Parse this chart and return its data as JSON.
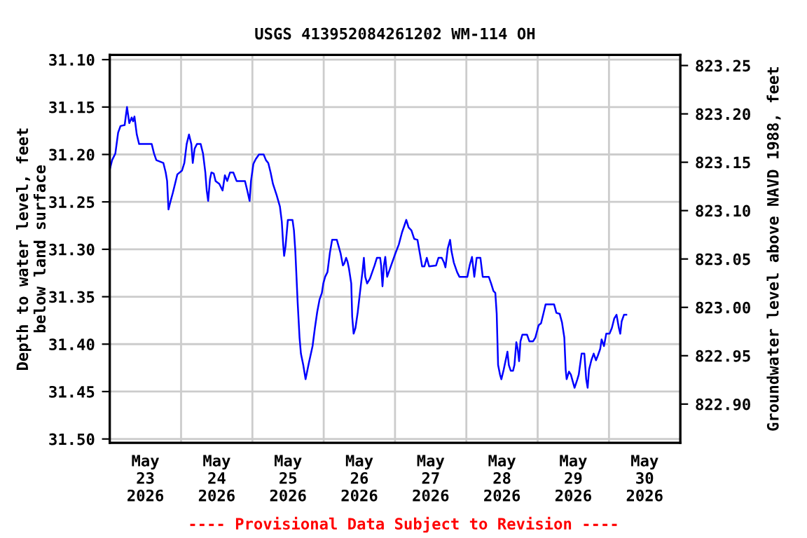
{
  "chart_data": {
    "type": "line",
    "title": "USGS 413952084261202 WM-114 OH",
    "ylabel": "Depth to water level, feet below land surface",
    "y2label": "Groundwater level above NAVD 1988, feet",
    "annotations": [
      "---- Provisional Data Subject to Revision ----"
    ],
    "xlim": [
      "2026-05-23T00:00",
      "2026-05-31T00:00"
    ],
    "xticks": [
      {
        "value": "2026-05-24T00:00",
        "label": null
      },
      {
        "value": "2026-05-25T00:00",
        "label": null
      },
      {
        "value": "2026-05-26T00:00",
        "label": null
      },
      {
        "value": "2026-05-27T00:00",
        "label": null
      },
      {
        "value": "2026-05-28T00:00",
        "label": null
      },
      {
        "value": "2026-05-29T00:00",
        "label": null
      },
      {
        "value": "2026-05-30T00:00",
        "label": null
      },
      {
        "value": "2026-05-23T12:00",
        "label": "May\n23\n2026"
      },
      {
        "value": "2026-05-24T12:00",
        "label": "May\n24\n2026"
      },
      {
        "value": "2026-05-25T12:00",
        "label": "May\n25\n2026"
      },
      {
        "value": "2026-05-26T12:00",
        "label": "May\n26\n2026"
      },
      {
        "value": "2026-05-27T12:00",
        "label": "May\n27\n2026"
      },
      {
        "value": "2026-05-28T12:00",
        "label": "May\n28\n2026"
      },
      {
        "value": "2026-05-29T12:00",
        "label": "May\n29\n2026"
      },
      {
        "value": "2026-05-30T12:00",
        "label": "May\n30\n2026"
      }
    ],
    "ylim": [
      31.504,
      31.095
    ],
    "yticks": [
      {
        "value": 31.1,
        "label": "31.10"
      },
      {
        "value": 31.15,
        "label": "31.15"
      },
      {
        "value": 31.2,
        "label": "31.20"
      },
      {
        "value": 31.25,
        "label": "31.25"
      },
      {
        "value": 31.3,
        "label": "31.30"
      },
      {
        "value": 31.35,
        "label": "31.35"
      },
      {
        "value": 31.4,
        "label": "31.40"
      },
      {
        "value": 31.45,
        "label": "31.45"
      },
      {
        "value": 31.5,
        "label": "31.50"
      }
    ],
    "y2lim": [
      822.86,
      823.261
    ],
    "y2ticks": [
      {
        "value": 822.9,
        "label": "822.90"
      },
      {
        "value": 822.95,
        "label": "822.95"
      },
      {
        "value": 823.0,
        "label": "823.00"
      },
      {
        "value": 823.05,
        "label": "823.05"
      },
      {
        "value": 823.1,
        "label": "823.10"
      },
      {
        "value": 823.15,
        "label": "823.15"
      },
      {
        "value": 823.2,
        "label": "823.20"
      },
      {
        "value": 823.25,
        "label": "823.25"
      }
    ],
    "grid": true,
    "series": [
      {
        "color": "#0000ff",
        "x": [
          "2026-05-23T00:00",
          "2026-05-23T00:47",
          "2026-05-23T01:53",
          "2026-05-23T02:49",
          "2026-05-23T03:37",
          "2026-05-23T05:01",
          "2026-05-23T05:48",
          "2026-05-23T06:35",
          "2026-05-23T07:22",
          "2026-05-23T07:51",
          "2026-05-23T08:19",
          "2026-05-23T09:06",
          "2026-05-23T09:53",
          "2026-05-23T14:07",
          "2026-05-23T14:54",
          "2026-05-23T15:41",
          "2026-05-23T18:03",
          "2026-05-23T18:50",
          "2026-05-23T19:18",
          "2026-05-23T19:46",
          "2026-05-23T20:24",
          "2026-05-23T21:11",
          "2026-05-23T21:58",
          "2026-05-23T22:45",
          "2026-05-24T00:19",
          "2026-05-24T01:06",
          "2026-05-24T01:53",
          "2026-05-24T02:40",
          "2026-05-24T03:27",
          "2026-05-24T03:56",
          "2026-05-24T04:33",
          "2026-05-24T05:20",
          "2026-05-24T06:36",
          "2026-05-24T07:23",
          "2026-05-24T08:10",
          "2026-05-24T08:38",
          "2026-05-24T09:07",
          "2026-05-24T09:44",
          "2026-05-24T10:12",
          "2026-05-24T10:59",
          "2026-05-24T11:37",
          "2026-05-24T12:52",
          "2026-05-24T13:58",
          "2026-05-24T14:45",
          "2026-05-24T15:32",
          "2026-05-24T16:29",
          "2026-05-24T17:35",
          "2026-05-24T18:41",
          "2026-05-24T21:30",
          "2026-05-24T22:17",
          "2026-05-24T23:04",
          "2026-05-24T23:32",
          "2026-05-25T00:20",
          "2026-05-25T01:07",
          "2026-05-25T02:13",
          "2026-05-25T03:47",
          "2026-05-25T04:34",
          "2026-05-25T05:21",
          "2026-05-25T06:08",
          "2026-05-25T06:55",
          "2026-05-25T08:10",
          "2026-05-25T09:16",
          "2026-05-25T09:54",
          "2026-05-25T10:22",
          "2026-05-25T10:41",
          "2026-05-25T11:09",
          "2026-05-25T11:56",
          "2026-05-25T13:30",
          "2026-05-25T13:59",
          "2026-05-25T14:27",
          "2026-05-25T15:14",
          "2026-05-25T15:52",
          "2026-05-25T16:20",
          "2026-05-25T17:07",
          "2026-05-25T17:54",
          "2026-05-25T19:00",
          "2026-05-25T20:15",
          "2026-05-25T21:02",
          "2026-05-25T21:49",
          "2026-05-25T22:36",
          "2026-05-25T23:23",
          "2026-05-25T23:52",
          "2026-05-26T00:29",
          "2026-05-26T01:16",
          "2026-05-26T02:04",
          "2026-05-26T02:50",
          "2026-05-26T04:25",
          "2026-05-26T05:40",
          "2026-05-26T06:27",
          "2026-05-26T06:55",
          "2026-05-26T07:33",
          "2026-05-26T08:01",
          "2026-05-26T08:29",
          "2026-05-26T09:16",
          "2026-05-26T09:35",
          "2026-05-26T10:04",
          "2026-05-26T10:41",
          "2026-05-26T11:28",
          "2026-05-26T12:16",
          "2026-05-26T13:02",
          "2026-05-26T13:31",
          "2026-05-26T13:59",
          "2026-05-26T14:37",
          "2026-05-26T15:33",
          "2026-05-26T16:20",
          "2026-05-26T17:07",
          "2026-05-26T17:54",
          "2026-05-26T19:00",
          "2026-05-26T19:19",
          "2026-05-26T19:47",
          "2026-05-26T20:16",
          "2026-05-26T20:43",
          "2026-05-26T21:21",
          "2026-05-26T22:08",
          "2026-05-26T22:55",
          "2026-05-27T00:10",
          "2026-05-27T01:16",
          "2026-05-27T02:22",
          "2026-05-27T03:09",
          "2026-05-27T03:47",
          "2026-05-27T04:34",
          "2026-05-27T05:31",
          "2026-05-27T06:27",
          "2026-05-27T07:33",
          "2026-05-27T08:20",
          "2026-05-27T09:07",
          "2026-05-27T09:54",
          "2026-05-27T10:41",
          "2026-05-27T11:28",
          "2026-05-27T13:49",
          "2026-05-27T14:37",
          "2026-05-27T15:43",
          "2026-05-27T16:29",
          "2026-05-27T16:58",
          "2026-05-27T17:45",
          "2026-05-27T18:32",
          "2026-05-27T19:00",
          "2026-05-27T19:47",
          "2026-05-27T20:53",
          "2026-05-27T21:40",
          "2026-05-28T00:20",
          "2026-05-28T01:07",
          "2026-05-28T01:54",
          "2026-05-28T02:41",
          "2026-05-28T03:28",
          "2026-05-28T04:44",
          "2026-05-28T05:31",
          "2026-05-28T07:33",
          "2026-05-28T08:20",
          "2026-05-28T09:07",
          "2026-05-28T09:45",
          "2026-05-28T10:13",
          "2026-05-28T10:41",
          "2026-05-28T11:19",
          "2026-05-28T11:47",
          "2026-05-28T12:34",
          "2026-05-28T13:22",
          "2026-05-28T13:50",
          "2026-05-28T14:18",
          "2026-05-28T14:56",
          "2026-05-28T15:43",
          "2026-05-28T16:11",
          "2026-05-28T16:49",
          "2026-05-28T17:17",
          "2026-05-28T17:45",
          "2026-05-28T18:13",
          "2026-05-28T18:51",
          "2026-05-28T20:25",
          "2026-05-28T21:12",
          "2026-05-28T22:28",
          "2026-05-28T23:14",
          "2026-05-29T00:20",
          "2026-05-29T01:08",
          "2026-05-29T01:55",
          "2026-05-29T02:41",
          "2026-05-29T05:31",
          "2026-05-29T06:18",
          "2026-05-29T07:24",
          "2026-05-29T08:11",
          "2026-05-29T08:58",
          "2026-05-29T09:26",
          "2026-05-29T09:45",
          "2026-05-29T10:32",
          "2026-05-29T11:10",
          "2026-05-29T11:47",
          "2026-05-29T12:25",
          "2026-05-29T13:22",
          "2026-05-29T13:50",
          "2026-05-29T14:47",
          "2026-05-29T15:43",
          "2026-05-29T16:20",
          "2026-05-29T16:49",
          "2026-05-29T17:17",
          "2026-05-29T18:04",
          "2026-05-29T18:51",
          "2026-05-29T19:38",
          "2026-05-29T20:16",
          "2026-05-29T21:03",
          "2026-05-29T21:31",
          "2026-05-29T22:19",
          "2026-05-29T23:05",
          "2026-05-30T00:11",
          "2026-05-30T00:58",
          "2026-05-30T01:46",
          "2026-05-30T02:32",
          "2026-05-30T03:20",
          "2026-05-30T03:48",
          "2026-05-30T04:16",
          "2026-05-30T05:03",
          "2026-05-30T05:50"
        ],
        "values": [
          31.216,
          31.206,
          31.199,
          31.177,
          31.17,
          31.169,
          31.15,
          31.167,
          31.161,
          31.165,
          31.16,
          31.179,
          31.189,
          31.189,
          31.199,
          31.206,
          31.209,
          31.219,
          31.228,
          31.258,
          31.25,
          31.241,
          31.231,
          31.221,
          31.217,
          31.209,
          31.189,
          31.179,
          31.189,
          31.209,
          31.194,
          31.189,
          31.189,
          31.199,
          31.219,
          31.238,
          31.249,
          31.226,
          31.219,
          31.22,
          31.228,
          31.231,
          31.238,
          31.222,
          31.228,
          31.219,
          31.219,
          31.228,
          31.228,
          31.238,
          31.249,
          31.228,
          31.21,
          31.205,
          31.2,
          31.2,
          31.206,
          31.209,
          31.219,
          31.231,
          31.243,
          31.255,
          31.271,
          31.295,
          31.307,
          31.297,
          31.269,
          31.269,
          31.28,
          31.302,
          31.356,
          31.393,
          31.41,
          31.422,
          31.437,
          31.42,
          31.402,
          31.383,
          31.366,
          31.353,
          31.346,
          31.336,
          31.329,
          31.324,
          31.304,
          31.29,
          31.29,
          31.304,
          31.317,
          31.315,
          31.309,
          31.313,
          31.32,
          31.336,
          31.371,
          31.389,
          31.383,
          31.366,
          31.344,
          31.324,
          31.309,
          31.329,
          31.336,
          31.331,
          31.324,
          31.317,
          31.309,
          31.309,
          31.317,
          31.339,
          31.317,
          31.308,
          31.329,
          31.322,
          31.315,
          31.304,
          31.295,
          31.282,
          31.275,
          31.269,
          31.277,
          31.28,
          31.289,
          31.29,
          31.304,
          31.318,
          31.318,
          31.309,
          31.318,
          31.317,
          31.309,
          31.309,
          31.314,
          31.319,
          31.299,
          31.29,
          31.302,
          31.314,
          31.324,
          31.329,
          31.329,
          31.317,
          31.308,
          31.329,
          31.309,
          31.309,
          31.329,
          31.329,
          31.336,
          31.344,
          31.346,
          31.368,
          31.422,
          31.432,
          31.437,
          31.427,
          31.415,
          31.408,
          31.422,
          31.428,
          31.428,
          31.422,
          31.398,
          31.405,
          31.418,
          31.397,
          31.39,
          31.39,
          31.397,
          31.397,
          31.393,
          31.38,
          31.378,
          31.368,
          31.358,
          31.358,
          31.367,
          31.368,
          31.377,
          31.393,
          31.427,
          31.437,
          31.429,
          31.432,
          31.439,
          31.446,
          31.437,
          31.432,
          31.41,
          31.41,
          31.437,
          31.446,
          31.427,
          31.417,
          31.41,
          31.417,
          31.412,
          31.405,
          31.395,
          31.402,
          31.389,
          31.389,
          31.383,
          31.373,
          31.369,
          31.383,
          31.389,
          31.376,
          31.369,
          31.369
        ]
      }
    ]
  }
}
